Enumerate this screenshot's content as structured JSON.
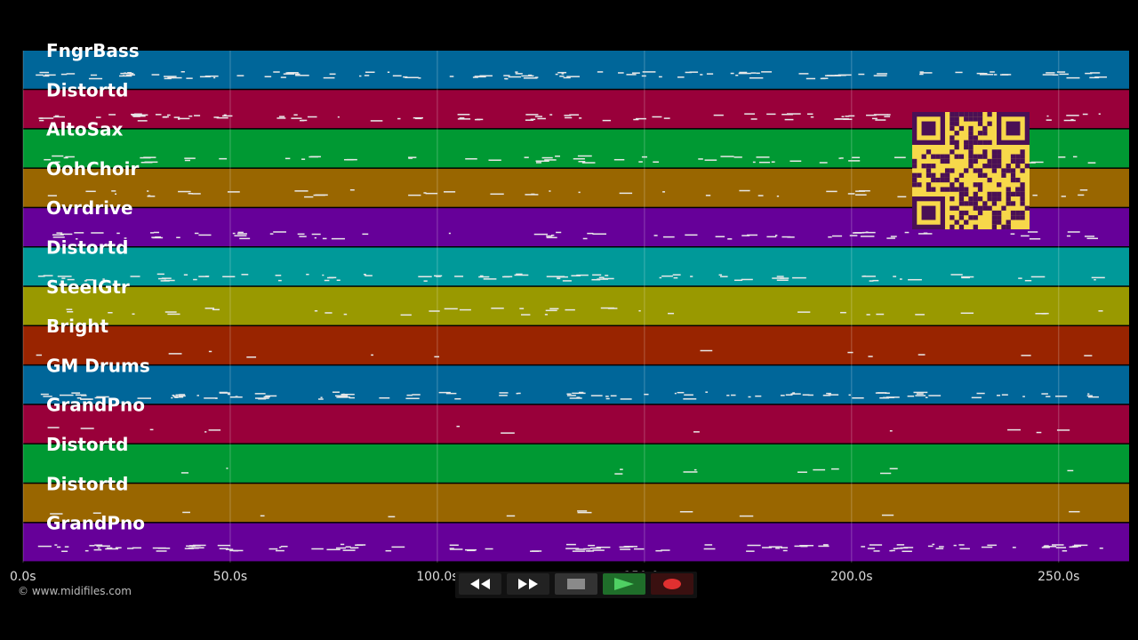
{
  "tracks": [
    {
      "label": "FngrBass",
      "color": "#006699"
    },
    {
      "label": "Distortd",
      "color": "#99003a"
    },
    {
      "label": "AltoSax",
      "color": "#009933"
    },
    {
      "label": "OohChoir",
      "color": "#996600"
    },
    {
      "label": "Ovrdrive",
      "color": "#660099"
    },
    {
      "label": "Distortd",
      "color": "#009999"
    },
    {
      "label": "SteelGtr",
      "color": "#999900"
    },
    {
      "label": "Bright",
      "color": "#992400"
    },
    {
      "label": "GM Drums",
      "color": "#006699"
    },
    {
      "label": "GrandPno",
      "color": "#99003a"
    },
    {
      "label": "Distortd",
      "color": "#009933"
    },
    {
      "label": "Distortd",
      "color": "#996600"
    },
    {
      "label": "GrandPno",
      "color": "#660099"
    }
  ],
  "time_axis": {
    "ticks": [
      "0.0s",
      "50.0s",
      "100.0s",
      "150.0s",
      "200.0s",
      "250.0s"
    ],
    "tick_values": [
      0,
      50,
      100,
      150,
      200,
      250
    ],
    "max": 267
  },
  "copyright": "© www.midifiles.com",
  "transport": {
    "rewind_icon": "rewind-icon",
    "forward_icon": "fast-forward-icon",
    "stop_icon": "stop-icon",
    "play_icon": "play-icon",
    "record_icon": "record-icon",
    "colors": {
      "play": "#2e9e3e",
      "record": "#e03030",
      "stop": "#8a8a8a",
      "button": "#222"
    }
  },
  "qr_icon": "qr-code-icon"
}
